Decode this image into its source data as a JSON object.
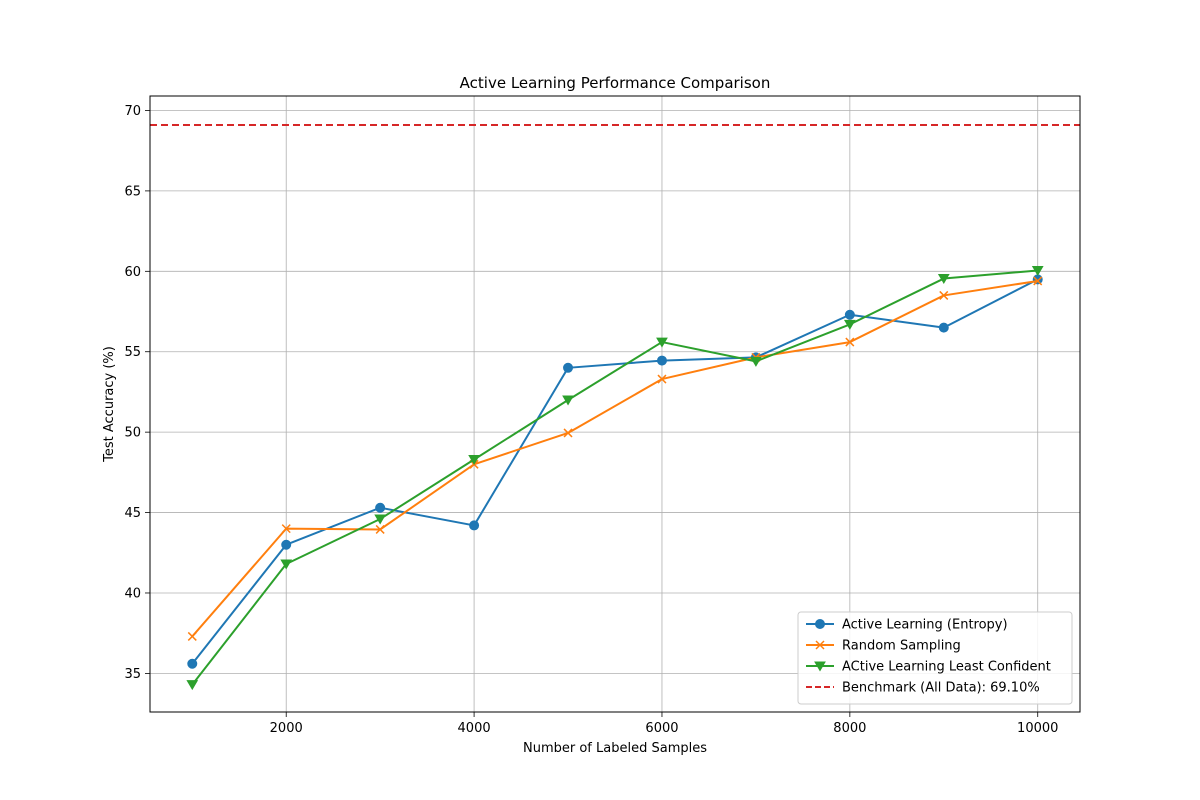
{
  "chart_data": {
    "type": "line",
    "title": "Active Learning Performance Comparison",
    "xlabel": "Number of Labeled Samples",
    "ylabel": "Test Accuracy (%)",
    "xlim": [
      550,
      10450
    ],
    "ylim": [
      32.6,
      70.9
    ],
    "xticks": [
      2000,
      4000,
      6000,
      8000,
      10000
    ],
    "xtick_labels": [
      "2000",
      "4000",
      "6000",
      "8000",
      "10000"
    ],
    "yticks": [
      35,
      40,
      45,
      50,
      55,
      60,
      65,
      70
    ],
    "ytick_labels": [
      "35",
      "40",
      "45",
      "50",
      "55",
      "60",
      "65",
      "70"
    ],
    "grid": true,
    "legend_position": "lower-right",
    "x": [
      1000,
      2000,
      3000,
      4000,
      5000,
      6000,
      7000,
      8000,
      9000,
      10000
    ],
    "series": [
      {
        "name": "Active Learning (Entropy)",
        "color": "#1f77b4",
        "marker": "circle",
        "values": [
          35.6,
          43.0,
          45.3,
          44.2,
          54.0,
          54.45,
          54.65,
          57.3,
          56.5,
          59.5
        ]
      },
      {
        "name": "Random Sampling",
        "color": "#ff7f0e",
        "marker": "x",
        "values": [
          37.3,
          44.0,
          43.95,
          48.0,
          49.95,
          53.3,
          54.65,
          55.6,
          58.5,
          59.4
        ]
      },
      {
        "name": "ACtive Learning Least Confident",
        "color": "#2ca02c",
        "marker": "triangle-down",
        "values": [
          34.3,
          41.8,
          44.6,
          48.3,
          52.0,
          55.6,
          54.4,
          56.7,
          59.55,
          60.05
        ]
      }
    ],
    "reference_line": {
      "name": "Benchmark (All Data): 69.10%",
      "value": 69.1,
      "color": "#d62728",
      "style": "dashed"
    }
  }
}
